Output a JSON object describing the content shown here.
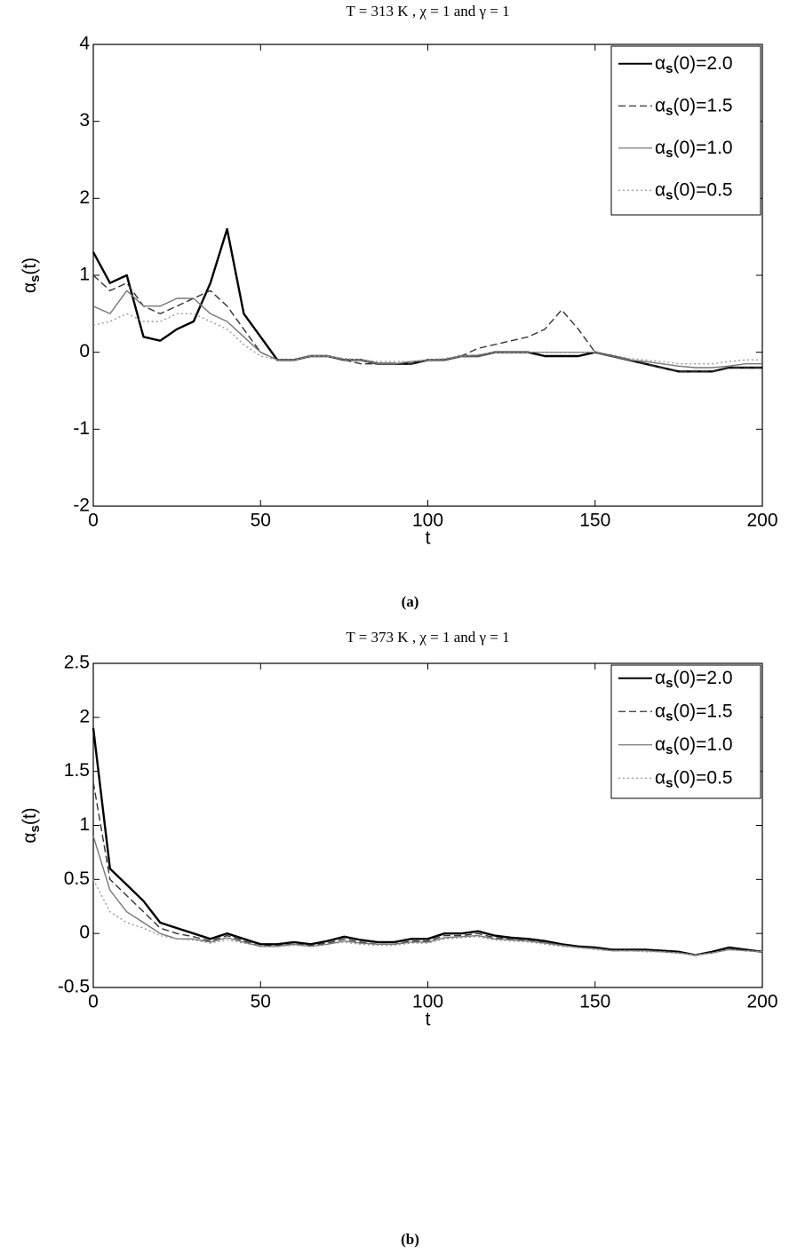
{
  "chart_data": [
    {
      "type": "line",
      "title": "T = 313 K , χ = 1 and γ = 1",
      "xlabel": "t",
      "ylabel": "αs(t)",
      "caption": "(a)",
      "x": [
        0,
        5,
        10,
        15,
        20,
        25,
        30,
        35,
        40,
        45,
        50,
        55,
        60,
        65,
        70,
        75,
        80,
        85,
        90,
        95,
        100,
        105,
        110,
        115,
        120,
        125,
        130,
        135,
        140,
        145,
        150,
        155,
        160,
        165,
        170,
        175,
        180,
        185,
        190,
        195,
        200
      ],
      "series": [
        {
          "name": "αs(0)=2.0",
          "color": "#000000",
          "style": "solid",
          "values": [
            1.3,
            0.9,
            1.0,
            0.2,
            0.15,
            0.3,
            0.4,
            0.9,
            1.6,
            0.5,
            0.2,
            -0.1,
            -0.1,
            -0.05,
            -0.05,
            -0.1,
            -0.1,
            -0.15,
            -0.15,
            -0.15,
            -0.1,
            -0.1,
            -0.05,
            -0.05,
            0,
            0,
            0,
            -0.05,
            -0.05,
            -0.05,
            0,
            -0.05,
            -0.1,
            -0.15,
            -0.2,
            -0.25,
            -0.25,
            -0.25,
            -0.2,
            -0.2,
            -0.2
          ]
        },
        {
          "name": "αs(0)=1.5",
          "color": "#333333",
          "style": "dashed",
          "values": [
            1.0,
            0.8,
            0.9,
            0.6,
            0.5,
            0.6,
            0.7,
            0.8,
            0.6,
            0.3,
            0,
            -0.1,
            -0.1,
            -0.05,
            -0.05,
            -0.1,
            -0.15,
            -0.15,
            -0.15,
            -0.15,
            -0.1,
            -0.1,
            -0.05,
            0.05,
            0.1,
            0.15,
            0.2,
            0.3,
            0.55,
            0.3,
            0,
            -0.05,
            -0.1,
            -0.15,
            -0.2,
            -0.25,
            -0.25,
            -0.25,
            -0.2,
            -0.2,
            -0.2
          ]
        },
        {
          "name": "αs(0)=1.0",
          "color": "#777777",
          "style": "solid",
          "values": [
            0.6,
            0.5,
            0.8,
            0.6,
            0.6,
            0.7,
            0.7,
            0.5,
            0.4,
            0.2,
            0,
            -0.1,
            -0.1,
            -0.05,
            -0.05,
            -0.1,
            -0.1,
            -0.15,
            -0.15,
            -0.12,
            -0.1,
            -0.1,
            -0.05,
            -0.05,
            0,
            0,
            0,
            0,
            0,
            0,
            0,
            -0.05,
            -0.1,
            -0.12,
            -0.15,
            -0.18,
            -0.2,
            -0.2,
            -0.18,
            -0.15,
            -0.15
          ]
        },
        {
          "name": "αs(0)=0.5",
          "color": "#999999",
          "style": "dotted",
          "values": [
            0.35,
            0.4,
            0.5,
            0.4,
            0.4,
            0.5,
            0.5,
            0.4,
            0.3,
            0.1,
            -0.05,
            -0.1,
            -0.1,
            -0.05,
            -0.05,
            -0.08,
            -0.1,
            -0.12,
            -0.12,
            -0.12,
            -0.1,
            -0.08,
            -0.05,
            -0.03,
            0,
            0,
            0,
            0,
            0,
            0,
            0,
            -0.03,
            -0.08,
            -0.1,
            -0.12,
            -0.15,
            -0.15,
            -0.15,
            -0.12,
            -0.1,
            -0.1
          ]
        }
      ],
      "xlim": [
        0,
        200
      ],
      "ylim": [
        -2,
        4
      ],
      "xticks": [
        0,
        50,
        100,
        150,
        200
      ],
      "yticks": [
        -2,
        -1,
        0,
        1,
        2,
        3,
        4
      ],
      "legend": "upper right"
    },
    {
      "type": "line",
      "title": "T = 373 K , χ = 1 and γ = 1",
      "xlabel": "t",
      "ylabel": "αs(t)",
      "caption": "(b)",
      "x": [
        0,
        5,
        10,
        15,
        20,
        25,
        30,
        35,
        40,
        45,
        50,
        55,
        60,
        65,
        70,
        75,
        80,
        85,
        90,
        95,
        100,
        105,
        110,
        115,
        120,
        125,
        130,
        135,
        140,
        145,
        150,
        155,
        160,
        165,
        170,
        175,
        180,
        185,
        190,
        195,
        200
      ],
      "series": [
        {
          "name": "αs(0)=2.0",
          "color": "#000000",
          "style": "solid",
          "values": [
            1.9,
            0.6,
            0.45,
            0.3,
            0.1,
            0.05,
            0,
            -0.05,
            0,
            -0.05,
            -0.1,
            -0.1,
            -0.08,
            -0.1,
            -0.07,
            -0.03,
            -0.06,
            -0.08,
            -0.08,
            -0.05,
            -0.05,
            0,
            0,
            0.02,
            -0.02,
            -0.04,
            -0.05,
            -0.07,
            -0.1,
            -0.12,
            -0.13,
            -0.15,
            -0.15,
            -0.15,
            -0.16,
            -0.17,
            -0.2,
            -0.17,
            -0.13,
            -0.15,
            -0.17
          ]
        },
        {
          "name": "αs(0)=1.5",
          "color": "#333333",
          "style": "dashed",
          "values": [
            1.4,
            0.5,
            0.35,
            0.2,
            0.05,
            0,
            -0.03,
            -0.07,
            -0.02,
            -0.07,
            -0.12,
            -0.11,
            -0.1,
            -0.11,
            -0.09,
            -0.05,
            -0.08,
            -0.1,
            -0.1,
            -0.07,
            -0.07,
            -0.02,
            -0.02,
            0,
            -0.04,
            -0.05,
            -0.06,
            -0.08,
            -0.11,
            -0.13,
            -0.14,
            -0.16,
            -0.16,
            -0.16,
            -0.17,
            -0.18,
            -0.2,
            -0.18,
            -0.14,
            -0.16,
            -0.17
          ]
        },
        {
          "name": "αs(0)=1.0",
          "color": "#777777",
          "style": "solid",
          "values": [
            0.9,
            0.4,
            0.2,
            0.1,
            0,
            -0.05,
            -0.05,
            -0.08,
            -0.04,
            -0.08,
            -0.12,
            -0.12,
            -0.1,
            -0.12,
            -0.1,
            -0.07,
            -0.09,
            -0.1,
            -0.1,
            -0.08,
            -0.08,
            -0.04,
            -0.03,
            -0.02,
            -0.05,
            -0.06,
            -0.07,
            -0.09,
            -0.11,
            -0.13,
            -0.14,
            -0.16,
            -0.16,
            -0.16,
            -0.17,
            -0.18,
            -0.2,
            -0.18,
            -0.15,
            -0.16,
            -0.17
          ]
        },
        {
          "name": "αs(0)=0.5",
          "color": "#999999",
          "style": "dotted",
          "values": [
            0.5,
            0.2,
            0.1,
            0.05,
            -0.02,
            -0.05,
            -0.06,
            -0.09,
            -0.06,
            -0.09,
            -0.12,
            -0.12,
            -0.11,
            -0.12,
            -0.1,
            -0.08,
            -0.1,
            -0.11,
            -0.11,
            -0.09,
            -0.09,
            -0.05,
            -0.04,
            -0.03,
            -0.06,
            -0.07,
            -0.08,
            -0.1,
            -0.12,
            -0.13,
            -0.15,
            -0.16,
            -0.16,
            -0.17,
            -0.17,
            -0.18,
            -0.2,
            -0.18,
            -0.15,
            -0.16,
            -0.17
          ]
        }
      ],
      "xlim": [
        0,
        200
      ],
      "ylim": [
        -0.5,
        2.5
      ],
      "xticks": [
        0,
        50,
        100,
        150,
        200
      ],
      "yticks": [
        -0.5,
        0,
        0.5,
        1,
        1.5,
        2,
        2.5
      ],
      "legend": "upper right"
    }
  ]
}
